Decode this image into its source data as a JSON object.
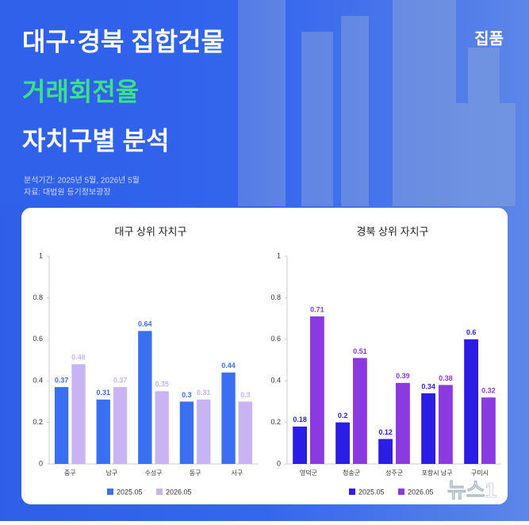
{
  "header": {
    "title_line1": "대구·경북 집합건물",
    "title_line2": "거래회전율",
    "title_line3": "자치구별 분석",
    "brand": "집품",
    "period": "분석기간: 2025년 5월, 2026년 5월",
    "source": "자료: 대법원 등기정보광장",
    "watermark": "뉴스1"
  },
  "chart_data": [
    {
      "type": "bar",
      "title": "대구 상위 자치구",
      "categories": [
        "중구",
        "남구",
        "수성구",
        "동구",
        "서구"
      ],
      "series": [
        {
          "name": "2025.05",
          "color": "#3a6ff2",
          "values": [
            0.37,
            0.31,
            0.64,
            0.3,
            0.44
          ]
        },
        {
          "name": "2026.05",
          "color": "#c8b4f2",
          "values": [
            0.48,
            0.37,
            0.35,
            0.31,
            0.3
          ]
        }
      ],
      "ylim": [
        0,
        1
      ],
      "yticks": [
        0,
        0.2,
        0.4,
        0.6,
        0.8,
        1
      ],
      "grid": false,
      "legend": "bottom"
    },
    {
      "type": "bar",
      "title": "경북 상위 자치구",
      "categories": [
        "영덕군",
        "청송군",
        "성주군",
        "포항시 남구",
        "구미시"
      ],
      "series": [
        {
          "name": "2025.05",
          "color": "#2b1de3",
          "values": [
            0.18,
            0.2,
            0.12,
            0.34,
            0.6
          ]
        },
        {
          "name": "2026.05",
          "color": "#8a3ae0",
          "values": [
            0.71,
            0.51,
            0.39,
            0.38,
            0.32
          ]
        }
      ],
      "ylim": [
        0,
        1
      ],
      "yticks": [
        0,
        0.2,
        0.4,
        0.6,
        0.8,
        1
      ],
      "grid": false,
      "legend": "bottom"
    }
  ]
}
